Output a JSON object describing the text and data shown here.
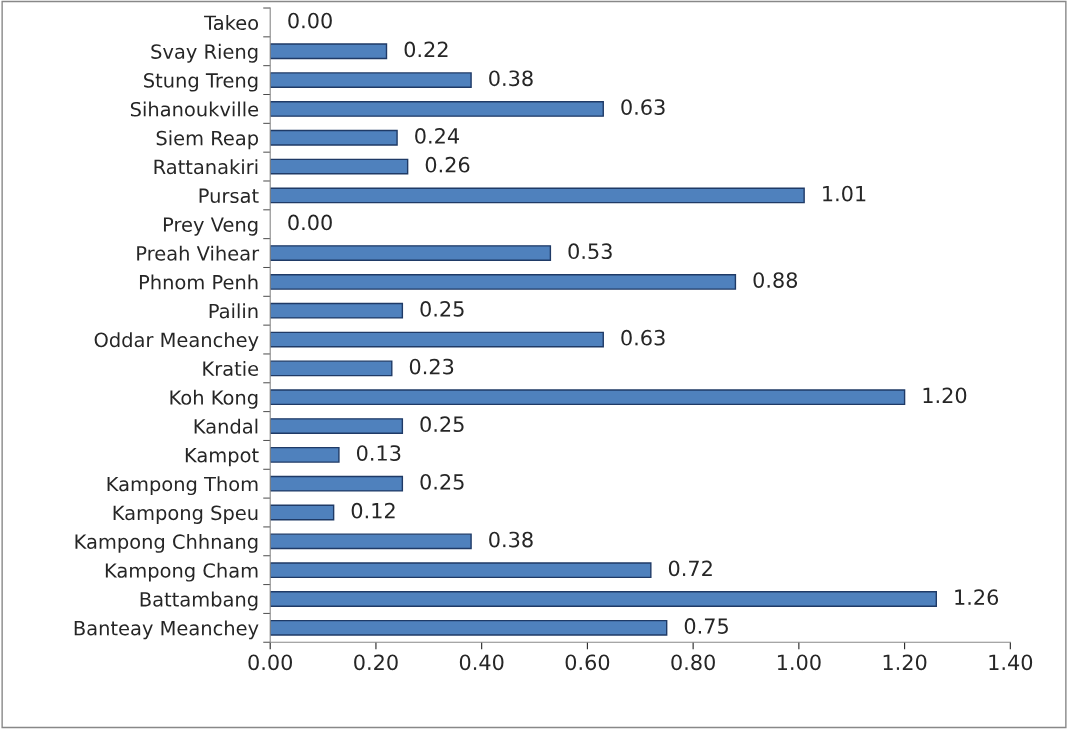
{
  "chart_data": {
    "type": "bar",
    "orientation": "horizontal",
    "categories": [
      "Takeo",
      "Svay Rieng",
      "Stung Treng",
      "Sihanoukville",
      "Siem Reap",
      "Rattanakiri",
      "Pursat",
      "Prey Veng",
      "Preah Vihear",
      "Phnom Penh",
      "Pailin",
      "Oddar Meanchey",
      "Kratie",
      "Koh Kong",
      "Kandal",
      "Kampot",
      "Kampong Thom",
      "Kampong Speu",
      "Kampong Chhnang",
      "Kampong Cham",
      "Battambang",
      "Banteay Meanchey"
    ],
    "values": [
      0.0,
      0.22,
      0.38,
      0.63,
      0.24,
      0.26,
      1.01,
      0.0,
      0.53,
      0.88,
      0.25,
      0.63,
      0.23,
      1.2,
      0.25,
      0.13,
      0.25,
      0.12,
      0.38,
      0.72,
      1.26,
      0.75
    ],
    "value_labels": [
      "0.00",
      "0.22",
      "0.38",
      "0.63",
      "0.24",
      "0.26",
      "1.01",
      "0.00",
      "0.53",
      "0.88",
      "0.25",
      "0.63",
      "0.23",
      "1.20",
      "0.25",
      "0.13",
      "0.25",
      "0.12",
      "0.38",
      "0.72",
      "1.26",
      "0.75"
    ],
    "color": "#4f81bd",
    "xlim": [
      0,
      1.4
    ],
    "xticks": [
      {
        "value": 0,
        "label": "0.00"
      },
      {
        "value": 0.2,
        "label": "0.20"
      },
      {
        "value": 0.4,
        "label": "0.40"
      },
      {
        "value": 0.6,
        "label": "0.60"
      },
      {
        "value": 0.8,
        "label": "0.80"
      },
      {
        "value": 1.0,
        "label": "1.00"
      },
      {
        "value": 1.2,
        "label": "1.20"
      },
      {
        "value": 1.4,
        "label": "1.40"
      }
    ],
    "grid": false,
    "legend": false
  }
}
